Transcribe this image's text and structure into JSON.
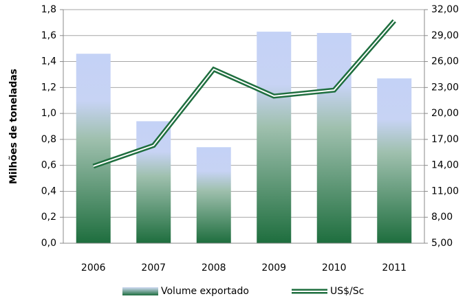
{
  "chart_data": {
    "type": "bar",
    "y_label": "Milhões de toneladas",
    "categories": [
      "2006",
      "2007",
      "2008",
      "2009",
      "2010",
      "2011"
    ],
    "series": [
      {
        "name": "Volume exportado",
        "type": "bar",
        "color": "#1e6e3e",
        "values": [
          1.46,
          0.94,
          0.74,
          1.63,
          1.62,
          1.27
        ]
      },
      {
        "name": "US$/Sc",
        "type": "line",
        "axis": "y2",
        "color": "#1e6e3e",
        "values": [
          13.9,
          16.3,
          25.1,
          22.0,
          22.7,
          30.7
        ]
      }
    ],
    "ylim": [
      0,
      1.8
    ],
    "yticks": [
      {
        "value": 0,
        "label": "0,0"
      },
      {
        "value": 0.2,
        "label": "0,2"
      },
      {
        "value": 0.4,
        "label": "0,4"
      },
      {
        "value": 0.6,
        "label": "0,6"
      },
      {
        "value": 0.8,
        "label": "0,8"
      },
      {
        "value": 1.0,
        "label": "1,0"
      },
      {
        "value": 1.2,
        "label": "1,2"
      },
      {
        "value": 1.4,
        "label": "1,4"
      },
      {
        "value": 1.6,
        "label": "1,6"
      },
      {
        "value": 1.8,
        "label": "1,8"
      }
    ],
    "y2lim": [
      5,
      32
    ],
    "y2ticks": [
      {
        "value": 5,
        "label": "5,00"
      },
      {
        "value": 8,
        "label": "8,00"
      },
      {
        "value": 11,
        "label": "11,00"
      },
      {
        "value": 14,
        "label": "14,00"
      },
      {
        "value": 17,
        "label": "17,00"
      },
      {
        "value": 20,
        "label": "20,00"
      },
      {
        "value": 23,
        "label": "23,00"
      },
      {
        "value": 26,
        "label": "26,00"
      },
      {
        "value": 29,
        "label": "29,00"
      },
      {
        "value": 32,
        "label": "32,00"
      }
    ],
    "grid": true
  }
}
